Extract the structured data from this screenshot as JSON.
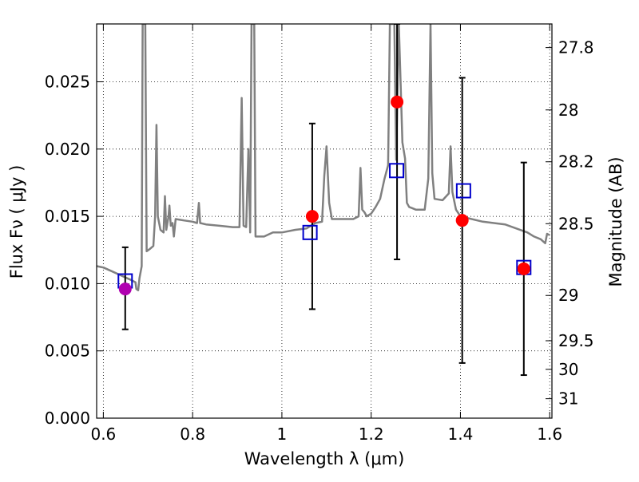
{
  "chart_data": {
    "type": "scatter",
    "xlabel": "Wavelength  λ (μm)",
    "ylabel": "Flux  Fν  ( μJy )",
    "y2label": "Magnitude (AB)",
    "xlim": [
      0.585,
      1.605
    ],
    "ylim": [
      0.0,
      0.0293
    ],
    "x_ticks": [
      0.6,
      0.8,
      1.0,
      1.2,
      1.4,
      1.6
    ],
    "x_tick_labels": [
      "0.6",
      "0.8",
      "1",
      "1.2",
      "1.4",
      "1.6"
    ],
    "y_ticks": [
      0.0,
      0.005,
      0.01,
      0.015,
      0.02,
      0.025
    ],
    "y_tick_labels": [
      "0.000",
      "0.005",
      "0.010",
      "0.015",
      "0.020",
      "0.025"
    ],
    "mag_ticks": [
      27.8,
      28.0,
      28.2,
      28.5,
      29.0,
      29.5,
      30.0,
      31.0
    ],
    "mag_tick_labels": [
      "27.8",
      "28",
      "28.2",
      "28.5",
      "29",
      "29.5",
      "30",
      "31"
    ],
    "grid": true,
    "model_spectrum": {
      "color": "#808080",
      "points": [
        [
          0.585,
          0.0113
        ],
        [
          0.6,
          0.0112
        ],
        [
          0.62,
          0.0109
        ],
        [
          0.64,
          0.0106
        ],
        [
          0.66,
          0.0103
        ],
        [
          0.672,
          0.0101
        ],
        [
          0.674,
          0.0096
        ],
        [
          0.678,
          0.0095
        ],
        [
          0.681,
          0.0104
        ],
        [
          0.686,
          0.0113
        ],
        [
          0.688,
          0.0293
        ],
        [
          0.694,
          0.0293
        ],
        [
          0.697,
          0.0124
        ],
        [
          0.705,
          0.0126
        ],
        [
          0.712,
          0.0128
        ],
        [
          0.716,
          0.015
        ],
        [
          0.719,
          0.0218
        ],
        [
          0.722,
          0.015
        ],
        [
          0.728,
          0.014
        ],
        [
          0.735,
          0.0138
        ],
        [
          0.738,
          0.0165
        ],
        [
          0.741,
          0.014
        ],
        [
          0.746,
          0.015
        ],
        [
          0.748,
          0.0158
        ],
        [
          0.751,
          0.0143
        ],
        [
          0.755,
          0.0145
        ],
        [
          0.758,
          0.0135
        ],
        [
          0.762,
          0.0148
        ],
        [
          0.78,
          0.0147
        ],
        [
          0.8,
          0.0146
        ],
        [
          0.81,
          0.0145
        ],
        [
          0.814,
          0.016
        ],
        [
          0.817,
          0.0145
        ],
        [
          0.83,
          0.0144
        ],
        [
          0.86,
          0.0143
        ],
        [
          0.89,
          0.0142
        ],
        [
          0.905,
          0.0142
        ],
        [
          0.91,
          0.0238
        ],
        [
          0.914,
          0.0143
        ],
        [
          0.92,
          0.0142
        ],
        [
          0.925,
          0.02
        ],
        [
          0.929,
          0.0138
        ],
        [
          0.932,
          0.0293
        ],
        [
          0.938,
          0.0293
        ],
        [
          0.941,
          0.0135
        ],
        [
          0.96,
          0.0135
        ],
        [
          0.98,
          0.0138
        ],
        [
          1.0,
          0.0138
        ],
        [
          1.03,
          0.014
        ],
        [
          1.055,
          0.0141
        ],
        [
          1.075,
          0.0145
        ],
        [
          1.09,
          0.0146
        ],
        [
          1.095,
          0.018
        ],
        [
          1.1,
          0.0202
        ],
        [
          1.106,
          0.016
        ],
        [
          1.112,
          0.0148
        ],
        [
          1.13,
          0.0148
        ],
        [
          1.16,
          0.0148
        ],
        [
          1.172,
          0.015
        ],
        [
          1.176,
          0.0186
        ],
        [
          1.18,
          0.0155
        ],
        [
          1.185,
          0.0153
        ],
        [
          1.19,
          0.015
        ],
        [
          1.2,
          0.0152
        ],
        [
          1.21,
          0.0157
        ],
        [
          1.22,
          0.0163
        ],
        [
          1.23,
          0.0178
        ],
        [
          1.238,
          0.0188
        ],
        [
          1.242,
          0.0293
        ],
        [
          1.252,
          0.0293
        ],
        [
          1.256,
          0.0192
        ],
        [
          1.262,
          0.0293
        ],
        [
          1.27,
          0.0205
        ],
        [
          1.276,
          0.0193
        ],
        [
          1.28,
          0.016
        ],
        [
          1.285,
          0.0157
        ],
        [
          1.3,
          0.0155
        ],
        [
          1.32,
          0.0155
        ],
        [
          1.328,
          0.0178
        ],
        [
          1.333,
          0.0293
        ],
        [
          1.337,
          0.0182
        ],
        [
          1.342,
          0.0163
        ],
        [
          1.36,
          0.0162
        ],
        [
          1.374,
          0.0167
        ],
        [
          1.378,
          0.0202
        ],
        [
          1.382,
          0.0168
        ],
        [
          1.39,
          0.0155
        ],
        [
          1.4,
          0.015
        ],
        [
          1.45,
          0.0146
        ],
        [
          1.5,
          0.0144
        ],
        [
          1.55,
          0.0138
        ],
        [
          1.565,
          0.0135
        ],
        [
          1.58,
          0.0133
        ],
        [
          1.59,
          0.013
        ],
        [
          1.594,
          0.0137
        ],
        [
          1.6,
          0.0136
        ]
      ]
    },
    "observed": {
      "x": [
        0.649,
        1.068,
        1.258,
        1.404,
        1.542
      ],
      "y": [
        0.0096,
        0.015,
        0.0235,
        0.0147,
        0.0111
      ],
      "yerr_low": [
        0.0066,
        0.0081,
        0.0118,
        0.0041,
        0.0032
      ],
      "yerr_high": [
        0.0127,
        0.0219,
        0.0293,
        0.0253,
        0.019
      ],
      "colors": [
        "#b000b0",
        "#ff0000",
        "#ff0000",
        "#ff0000",
        "#ff0000"
      ]
    },
    "model_photometry": {
      "x": [
        0.649,
        1.063,
        1.257,
        1.407,
        1.542
      ],
      "y": [
        0.0102,
        0.0138,
        0.0184,
        0.0169,
        0.0112
      ],
      "color": "#0000cc"
    }
  }
}
